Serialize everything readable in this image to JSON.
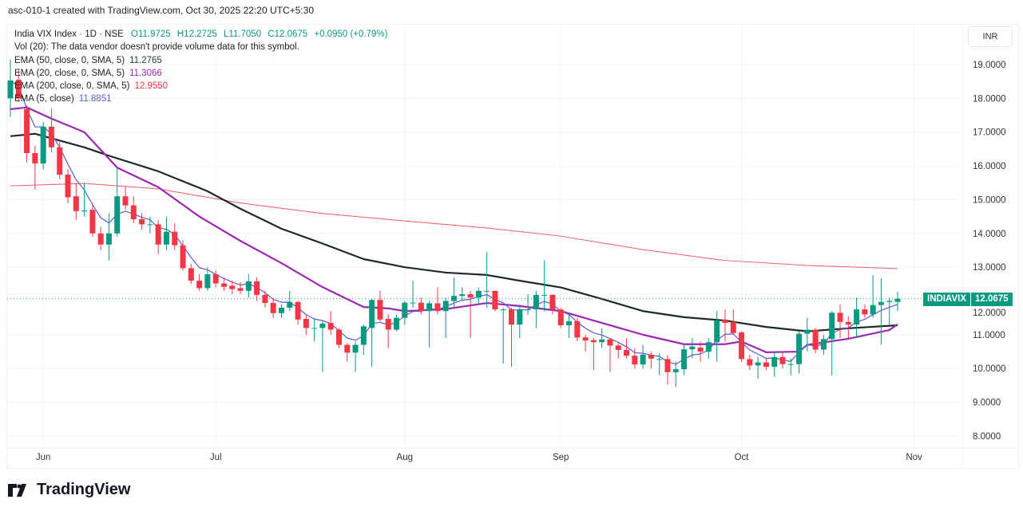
{
  "header": {
    "text": "asc-010-1 created with TradingView.com, Oct 30, 2025 22:20 UTC+5:30"
  },
  "legend": {
    "symbol": "India VIX Index · 1D · NSE",
    "open": "O11.9725",
    "high": "H12.2725",
    "low": "L11.7050",
    "close": "C12.0675",
    "change": "+0.0950 (+0.79%)",
    "volume_note": "Vol (20): The data vendor doesn't provide volume data for this symbol.",
    "indicators": [
      {
        "label": "EMA (50, close, 0, SMA, 5)",
        "value": "11.2765",
        "color": "#1e2a26"
      },
      {
        "label": "EMA (20, close, 0, SMA, 5)",
        "value": "11.3066",
        "color": "#9c27b0"
      },
      {
        "label": "EMA (200, close, 0, SMA, 5)",
        "value": "12.9550",
        "color": "#f23645"
      },
      {
        "label": "EMA (5, close)",
        "value": "11.8851",
        "color": "#5b5bd6"
      }
    ]
  },
  "currency_button": "INR",
  "price_label": {
    "symbol": "INDIAVIX",
    "value": "12.0675"
  },
  "logo_text": "TradingView",
  "colors": {
    "up": "#089981",
    "down": "#f23645",
    "grid": "#f0f3fa"
  },
  "chart_data": {
    "type": "candlestick",
    "title": "India VIX Index · 1D · NSE",
    "ylim": [
      8,
      19
    ],
    "y_ticks": [
      "8.0000",
      "9.0000",
      "10.0000",
      "11.0000",
      "12.0000",
      "13.0000",
      "14.0000",
      "15.0000",
      "16.0000",
      "17.0000",
      "18.0000",
      "19.0000"
    ],
    "x_ticks": [
      {
        "label": "Jun",
        "bar": 4
      },
      {
        "label": "Jul",
        "bar": 25
      },
      {
        "label": "Aug",
        "bar": 48
      },
      {
        "label": "Sep",
        "bar": 67
      },
      {
        "label": "Oct",
        "bar": 89
      },
      {
        "label": "Nov",
        "bar": 110
      }
    ],
    "last_price": 12.0675,
    "ohlc": [
      [
        18.0,
        19.15,
        17.45,
        18.53
      ],
      [
        18.55,
        18.85,
        17.9,
        18.0
      ],
      [
        17.68,
        17.8,
        16.1,
        16.38
      ],
      [
        16.38,
        16.6,
        15.3,
        16.07
      ],
      [
        16.07,
        17.3,
        15.9,
        17.16
      ],
      [
        17.16,
        17.7,
        16.4,
        16.55
      ],
      [
        16.55,
        16.7,
        15.6,
        15.74
      ],
      [
        15.74,
        15.9,
        14.9,
        15.07
      ],
      [
        15.1,
        15.5,
        14.4,
        14.66
      ],
      [
        14.66,
        15.5,
        14.5,
        14.68
      ],
      [
        14.7,
        14.9,
        13.9,
        14.0
      ],
      [
        14.0,
        14.2,
        13.5,
        13.67
      ],
      [
        13.67,
        14.6,
        13.2,
        14.0
      ],
      [
        14.0,
        15.98,
        13.9,
        15.1
      ],
      [
        15.1,
        15.4,
        14.7,
        14.83
      ],
      [
        14.83,
        15.1,
        14.3,
        14.42
      ],
      [
        14.42,
        14.6,
        14.1,
        14.27
      ],
      [
        14.27,
        14.5,
        14.0,
        14.27
      ],
      [
        14.27,
        14.4,
        13.4,
        13.67
      ],
      [
        13.67,
        14.5,
        13.5,
        14.05
      ],
      [
        14.05,
        14.3,
        13.5,
        13.65
      ],
      [
        13.65,
        13.8,
        12.9,
        12.97
      ],
      [
        12.97,
        13.1,
        12.5,
        12.6
      ],
      [
        12.6,
        12.8,
        12.3,
        12.38
      ],
      [
        12.38,
        13.0,
        12.3,
        12.79
      ],
      [
        12.79,
        12.9,
        12.4,
        12.52
      ],
      [
        12.52,
        12.7,
        12.3,
        12.42
      ],
      [
        12.45,
        12.6,
        12.2,
        12.35
      ],
      [
        12.38,
        12.55,
        12.2,
        12.3
      ],
      [
        12.3,
        12.8,
        12.1,
        12.58
      ],
      [
        12.58,
        12.7,
        12.0,
        12.18
      ],
      [
        12.18,
        12.3,
        11.8,
        11.94
      ],
      [
        11.94,
        12.1,
        11.5,
        11.64
      ],
      [
        11.64,
        11.9,
        11.5,
        11.8
      ],
      [
        11.8,
        12.3,
        11.7,
        11.97
      ],
      [
        11.97,
        12.0,
        11.3,
        11.45
      ],
      [
        11.47,
        11.6,
        11.0,
        11.2
      ],
      [
        11.2,
        11.5,
        10.8,
        11.2
      ],
      [
        11.2,
        11.4,
        9.9,
        11.33
      ],
      [
        11.35,
        11.7,
        11.0,
        11.15
      ],
      [
        11.15,
        11.2,
        10.6,
        10.7
      ],
      [
        10.7,
        10.75,
        10.2,
        10.47
      ],
      [
        10.47,
        10.8,
        9.9,
        10.7
      ],
      [
        10.7,
        11.3,
        10.4,
        11.25
      ],
      [
        11.2,
        12.05,
        10.05,
        12.03
      ],
      [
        12.03,
        12.3,
        11.4,
        11.45
      ],
      [
        11.47,
        11.6,
        10.6,
        11.15
      ],
      [
        11.15,
        11.6,
        11.1,
        11.5
      ],
      [
        11.5,
        12.0,
        11.3,
        11.95
      ],
      [
        11.95,
        12.6,
        11.8,
        11.95
      ],
      [
        11.95,
        12.1,
        11.6,
        11.7
      ],
      [
        11.7,
        12.0,
        10.62,
        11.93
      ],
      [
        11.93,
        12.4,
        11.6,
        11.7
      ],
      [
        11.7,
        12.1,
        10.9,
        12.0
      ],
      [
        12.0,
        12.7,
        11.8,
        12.15
      ],
      [
        12.15,
        12.4,
        12.0,
        12.2
      ],
      [
        12.2,
        12.3,
        10.9,
        12.1
      ],
      [
        12.1,
        12.4,
        11.9,
        12.3
      ],
      [
        12.3,
        13.45,
        11.8,
        12.3
      ],
      [
        12.3,
        12.3,
        11.7,
        11.75
      ],
      [
        11.75,
        11.8,
        10.15,
        11.75
      ],
      [
        11.75,
        11.8,
        10.05,
        11.3
      ],
      [
        11.3,
        11.9,
        10.9,
        11.75
      ],
      [
        11.75,
        12.2,
        11.6,
        11.75
      ],
      [
        11.75,
        12.3,
        11.2,
        12.18
      ],
      [
        12.18,
        13.2,
        11.7,
        12.18
      ],
      [
        12.18,
        12.2,
        11.6,
        11.75
      ],
      [
        11.75,
        11.8,
        11.2,
        11.28
      ],
      [
        11.28,
        11.6,
        10.9,
        11.4
      ],
      [
        11.4,
        11.5,
        10.8,
        10.92
      ],
      [
        10.92,
        11.0,
        10.5,
        10.83
      ],
      [
        10.84,
        10.9,
        9.95,
        10.78
      ],
      [
        10.78,
        11.2,
        10.6,
        10.86
      ],
      [
        10.86,
        10.9,
        9.9,
        10.68
      ],
      [
        10.68,
        10.75,
        10.3,
        10.55
      ],
      [
        10.55,
        10.9,
        10.3,
        10.38
      ],
      [
        10.38,
        10.6,
        10.0,
        10.12
      ],
      [
        10.12,
        10.7,
        10.0,
        10.41
      ],
      [
        10.41,
        10.5,
        10.0,
        10.29
      ],
      [
        10.28,
        10.45,
        9.8,
        10.28
      ],
      [
        10.28,
        10.4,
        9.52,
        9.89
      ],
      [
        9.89,
        10.2,
        9.45,
        9.98
      ],
      [
        9.98,
        10.7,
        9.8,
        10.57
      ],
      [
        10.57,
        10.9,
        10.3,
        10.65
      ],
      [
        10.62,
        10.8,
        10.2,
        10.5
      ],
      [
        10.5,
        10.9,
        10.3,
        10.78
      ],
      [
        10.78,
        11.7,
        10.2,
        11.43
      ],
      [
        11.45,
        11.75,
        10.8,
        11.35
      ],
      [
        11.38,
        11.75,
        11.0,
        11.05
      ],
      [
        11.07,
        11.1,
        10.2,
        10.28
      ],
      [
        10.28,
        10.4,
        9.95,
        10.09
      ],
      [
        10.09,
        10.35,
        9.7,
        10.18
      ],
      [
        10.18,
        10.3,
        9.95,
        10.05
      ],
      [
        10.05,
        10.5,
        9.75,
        10.34
      ],
      [
        10.34,
        10.5,
        10.0,
        10.13
      ],
      [
        10.13,
        10.3,
        9.8,
        10.13
      ],
      [
        10.13,
        11.1,
        9.85,
        11.03
      ],
      [
        11.03,
        11.5,
        10.5,
        11.15
      ],
      [
        11.15,
        11.2,
        10.45,
        10.56
      ],
      [
        10.56,
        11.0,
        10.4,
        10.87
      ],
      [
        10.87,
        11.7,
        9.8,
        11.65
      ],
      [
        11.65,
        11.9,
        10.9,
        11.38
      ],
      [
        11.38,
        11.55,
        10.9,
        11.3
      ],
      [
        11.3,
        12.1,
        10.9,
        11.75
      ],
      [
        11.75,
        11.9,
        11.5,
        11.6
      ],
      [
        11.6,
        12.76,
        11.5,
        11.88
      ],
      [
        11.88,
        12.67,
        10.7,
        11.97
      ],
      [
        11.97,
        12.1,
        11.3,
        12.0
      ],
      [
        11.9725,
        12.2725,
        11.705,
        12.0675
      ]
    ],
    "ema50": [
      [
        0,
        16.88
      ],
      [
        3,
        16.95
      ],
      [
        9,
        16.55
      ],
      [
        12,
        16.3
      ],
      [
        18,
        15.84
      ],
      [
        24,
        15.25
      ],
      [
        28,
        14.73
      ],
      [
        33,
        14.14
      ],
      [
        38,
        13.7
      ],
      [
        43,
        13.24
      ],
      [
        48,
        13.0
      ],
      [
        53,
        12.84
      ],
      [
        58,
        12.77
      ],
      [
        62,
        12.6
      ],
      [
        67,
        12.4
      ],
      [
        72,
        12.06
      ],
      [
        77,
        11.7
      ],
      [
        82,
        11.52
      ],
      [
        87,
        11.42
      ],
      [
        92,
        11.23
      ],
      [
        97,
        11.1
      ],
      [
        102,
        11.19
      ],
      [
        108,
        11.28
      ]
    ],
    "ema20": [
      [
        0,
        17.68
      ],
      [
        2,
        17.73
      ],
      [
        5,
        17.4
      ],
      [
        9,
        17.0
      ],
      [
        13,
        15.95
      ],
      [
        18,
        15.37
      ],
      [
        23,
        14.5
      ],
      [
        28,
        13.78
      ],
      [
        33,
        13.12
      ],
      [
        38,
        12.41
      ],
      [
        43,
        11.82
      ],
      [
        46,
        11.78
      ],
      [
        48,
        11.7
      ],
      [
        53,
        11.76
      ],
      [
        58,
        11.94
      ],
      [
        62,
        11.85
      ],
      [
        67,
        11.7
      ],
      [
        72,
        11.35
      ],
      [
        77,
        11.0
      ],
      [
        82,
        10.72
      ],
      [
        87,
        10.72
      ],
      [
        89,
        10.8
      ],
      [
        92,
        10.48
      ],
      [
        96,
        10.5
      ],
      [
        97,
        10.7
      ],
      [
        102,
        10.88
      ],
      [
        107,
        11.14
      ],
      [
        108,
        11.31
      ]
    ],
    "ema200": [
      [
        0,
        15.41
      ],
      [
        9,
        15.48
      ],
      [
        18,
        15.32
      ],
      [
        28,
        14.9
      ],
      [
        38,
        14.59
      ],
      [
        48,
        14.37
      ],
      [
        58,
        14.16
      ],
      [
        67,
        13.92
      ],
      [
        77,
        13.52
      ],
      [
        87,
        13.2
      ],
      [
        97,
        13.05
      ],
      [
        108,
        12.96
      ]
    ]
  }
}
